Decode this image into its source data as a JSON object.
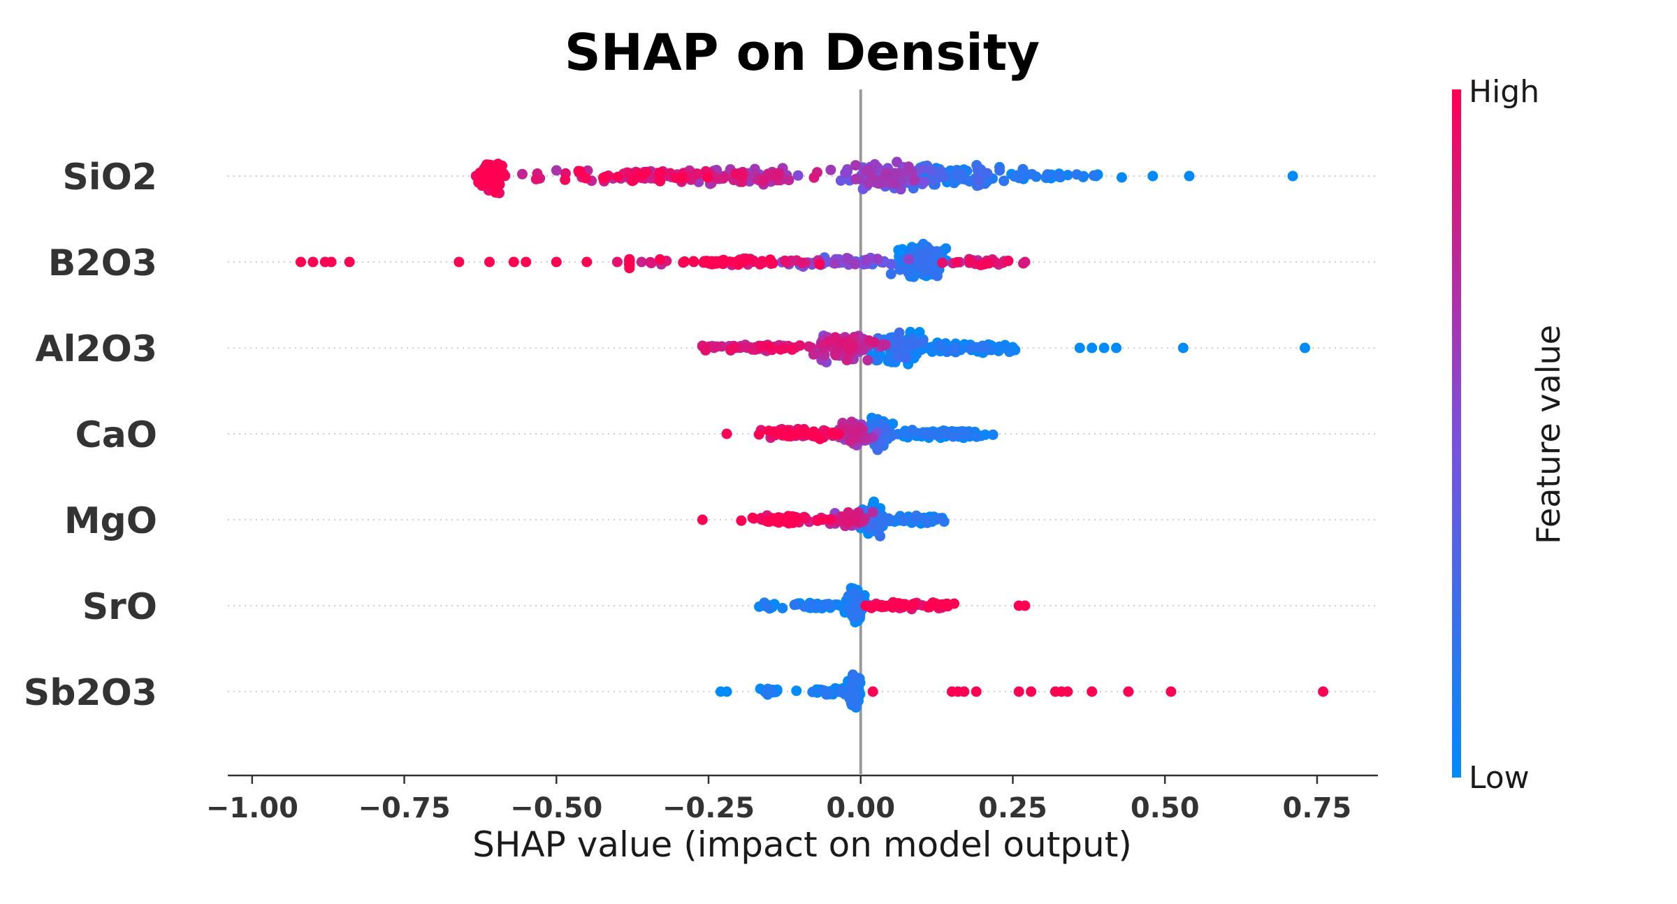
{
  "chart_data": {
    "type": "scatter",
    "subtype": "shap-beeswarm",
    "title": "SHAP on Density",
    "xlabel": "SHAP value (impact on model output)",
    "ylabel": "",
    "xlim": [
      -1.04,
      0.85
    ],
    "xticks": [
      -1.0,
      -0.75,
      -0.5,
      -0.25,
      0.0,
      0.25,
      0.5,
      0.75
    ],
    "xtick_labels": [
      "−1.00",
      "−0.75",
      "−0.50",
      "−0.25",
      "0.00",
      "0.25",
      "0.50",
      "0.75"
    ],
    "grid": "dotted horizontal row guides",
    "zero_line": 0.0,
    "colorbar": {
      "title": "Feature value",
      "high_label": "High",
      "low_label": "Low",
      "high_color": "#ff0052",
      "mid_color": "#7b4fe0",
      "low_color": "#008bfb"
    },
    "features": [
      {
        "name": "SiO2",
        "span": [
          -0.66,
          0.43
        ],
        "count": 420,
        "spread": 1.0,
        "clusters": [
          {
            "center": -0.61,
            "width": 0.015,
            "weight": 0.18,
            "height": 1.6,
            "color": 1.0
          },
          {
            "center": -0.35,
            "width": 0.14,
            "weight": 0.2,
            "height": 0.55,
            "color": 0.85
          },
          {
            "center": -0.18,
            "width": 0.08,
            "weight": 0.16,
            "height": 0.75,
            "color": 0.7
          },
          {
            "center": 0.03,
            "width": 0.05,
            "weight": 0.18,
            "height": 1.2,
            "color": 0.5
          },
          {
            "center": 0.14,
            "width": 0.07,
            "weight": 0.2,
            "height": 1.1,
            "color": 0.15
          },
          {
            "center": 0.3,
            "width": 0.08,
            "weight": 0.08,
            "height": 0.3,
            "color": 0.02
          }
        ],
        "outliers": [
          {
            "x": 0.48,
            "c": 0.0
          },
          {
            "x": 0.54,
            "c": 0.0
          },
          {
            "x": 0.71,
            "c": 0.0
          }
        ]
      },
      {
        "name": "B2O3",
        "span": [
          -0.36,
          0.27
        ],
        "count": 300,
        "spread": 1.0,
        "clusters": [
          {
            "center": -0.94,
            "width": 0.015,
            "weight": 0.05,
            "height": 0.6,
            "color": 1.0
          },
          {
            "center": -0.2,
            "width": 0.1,
            "weight": 0.18,
            "height": 0.3,
            "color": 0.92
          },
          {
            "center": -0.03,
            "width": 0.06,
            "weight": 0.14,
            "height": 0.4,
            "color": 0.45
          },
          {
            "center": 0.1,
            "width": 0.025,
            "weight": 0.43,
            "height": 1.5,
            "color": 0.05
          },
          {
            "center": 0.2,
            "width": 0.04,
            "weight": 0.08,
            "height": 0.3,
            "color": 0.8
          }
        ],
        "outliers": [
          {
            "x": -0.92,
            "c": 1.0
          },
          {
            "x": -0.9,
            "c": 1.0
          },
          {
            "x": -0.88,
            "c": 1.0
          },
          {
            "x": -0.87,
            "c": 1.0
          },
          {
            "x": -0.84,
            "c": 1.0
          },
          {
            "x": -0.66,
            "c": 1.0
          },
          {
            "x": -0.61,
            "c": 1.0
          },
          {
            "x": -0.57,
            "c": 1.0
          },
          {
            "x": -0.55,
            "c": 1.0
          },
          {
            "x": -0.5,
            "c": 1.0
          },
          {
            "x": -0.45,
            "c": 1.0
          },
          {
            "x": -0.4,
            "c": 0.9
          },
          {
            "x": -0.38,
            "c": 0.85
          },
          {
            "x": -0.36,
            "c": 0.8
          },
          {
            "x": 0.27,
            "c": 0.85
          }
        ]
      },
      {
        "name": "Al2O3",
        "span": [
          -0.24,
          0.3
        ],
        "count": 340,
        "spread": 1.0,
        "clusters": [
          {
            "center": -0.16,
            "width": 0.06,
            "weight": 0.15,
            "height": 0.35,
            "color": 0.8
          },
          {
            "center": -0.03,
            "width": 0.035,
            "weight": 0.3,
            "height": 1.25,
            "color": 0.7
          },
          {
            "center": 0.06,
            "width": 0.03,
            "weight": 0.25,
            "height": 1.4,
            "color": 0.08
          },
          {
            "center": 0.17,
            "width": 0.07,
            "weight": 0.22,
            "height": 0.45,
            "color": 0.02
          }
        ],
        "outliers": [
          {
            "x": 0.36,
            "c": 0.0
          },
          {
            "x": 0.38,
            "c": 0.0
          },
          {
            "x": 0.4,
            "c": 0.0
          },
          {
            "x": 0.42,
            "c": 0.0
          },
          {
            "x": 0.53,
            "c": 0.0
          },
          {
            "x": 0.73,
            "c": 0.0
          }
        ]
      },
      {
        "name": "CaO",
        "span": [
          -0.17,
          0.23
        ],
        "count": 260,
        "spread": 1.0,
        "clusters": [
          {
            "center": -0.1,
            "width": 0.05,
            "weight": 0.22,
            "height": 0.45,
            "color": 0.92
          },
          {
            "center": -0.01,
            "width": 0.02,
            "weight": 0.2,
            "height": 1.2,
            "color": 0.65
          },
          {
            "center": 0.03,
            "width": 0.015,
            "weight": 0.15,
            "height": 1.45,
            "color": 0.1
          },
          {
            "center": 0.14,
            "width": 0.05,
            "weight": 0.3,
            "height": 0.35,
            "color": 0.03
          }
        ],
        "outliers": [
          {
            "x": -0.22,
            "c": 1.0
          }
        ]
      },
      {
        "name": "MgO",
        "span": [
          -0.21,
          0.15
        ],
        "count": 250,
        "spread": 1.0,
        "clusters": [
          {
            "center": -0.12,
            "width": 0.045,
            "weight": 0.25,
            "height": 0.35,
            "color": 0.95
          },
          {
            "center": -0.02,
            "width": 0.02,
            "weight": 0.2,
            "height": 0.7,
            "color": 0.7
          },
          {
            "center": 0.02,
            "width": 0.012,
            "weight": 0.25,
            "height": 1.5,
            "color": 0.08
          },
          {
            "center": 0.09,
            "width": 0.03,
            "weight": 0.22,
            "height": 0.35,
            "color": 0.02
          }
        ],
        "outliers": [
          {
            "x": -0.26,
            "c": 1.0
          }
        ]
      },
      {
        "name": "SrO",
        "span": [
          -0.17,
          0.16
        ],
        "count": 230,
        "spread": 1.0,
        "clusters": [
          {
            "center": -0.15,
            "width": 0.01,
            "weight": 0.05,
            "height": 0.3,
            "color": 0.0
          },
          {
            "center": -0.07,
            "width": 0.035,
            "weight": 0.18,
            "height": 0.3,
            "color": 0.0
          },
          {
            "center": -0.01,
            "width": 0.01,
            "weight": 0.45,
            "height": 1.5,
            "color": 0.02
          },
          {
            "center": 0.06,
            "width": 0.03,
            "weight": 0.17,
            "height": 0.3,
            "color": 1.0
          },
          {
            "center": 0.13,
            "width": 0.02,
            "weight": 0.1,
            "height": 0.3,
            "color": 1.0
          }
        ],
        "outliers": [
          {
            "x": 0.26,
            "c": 1.0
          },
          {
            "x": 0.27,
            "c": 1.0
          }
        ]
      },
      {
        "name": "Sb2O3",
        "span": [
          -0.17,
          0.02
        ],
        "count": 180,
        "spread": 1.0,
        "clusters": [
          {
            "center": -0.15,
            "width": 0.01,
            "weight": 0.1,
            "height": 0.3,
            "color": 0.0
          },
          {
            "center": -0.05,
            "width": 0.03,
            "weight": 0.2,
            "height": 0.3,
            "color": 0.0
          },
          {
            "center": -0.01,
            "width": 0.006,
            "weight": 0.6,
            "height": 1.6,
            "color": 0.02
          }
        ],
        "outliers": [
          {
            "x": -0.23,
            "c": 0.0
          },
          {
            "x": -0.22,
            "c": 0.0
          },
          {
            "x": 0.02,
            "c": 1.0
          },
          {
            "x": 0.15,
            "c": 1.0
          },
          {
            "x": 0.16,
            "c": 1.0
          },
          {
            "x": 0.17,
            "c": 1.0
          },
          {
            "x": 0.19,
            "c": 1.0
          },
          {
            "x": 0.26,
            "c": 1.0
          },
          {
            "x": 0.28,
            "c": 1.0
          },
          {
            "x": 0.32,
            "c": 1.0
          },
          {
            "x": 0.33,
            "c": 1.0
          },
          {
            "x": 0.34,
            "c": 1.0
          },
          {
            "x": 0.38,
            "c": 1.0
          },
          {
            "x": 0.44,
            "c": 1.0
          },
          {
            "x": 0.51,
            "c": 1.0
          },
          {
            "x": 0.76,
            "c": 1.0
          }
        ]
      }
    ]
  }
}
